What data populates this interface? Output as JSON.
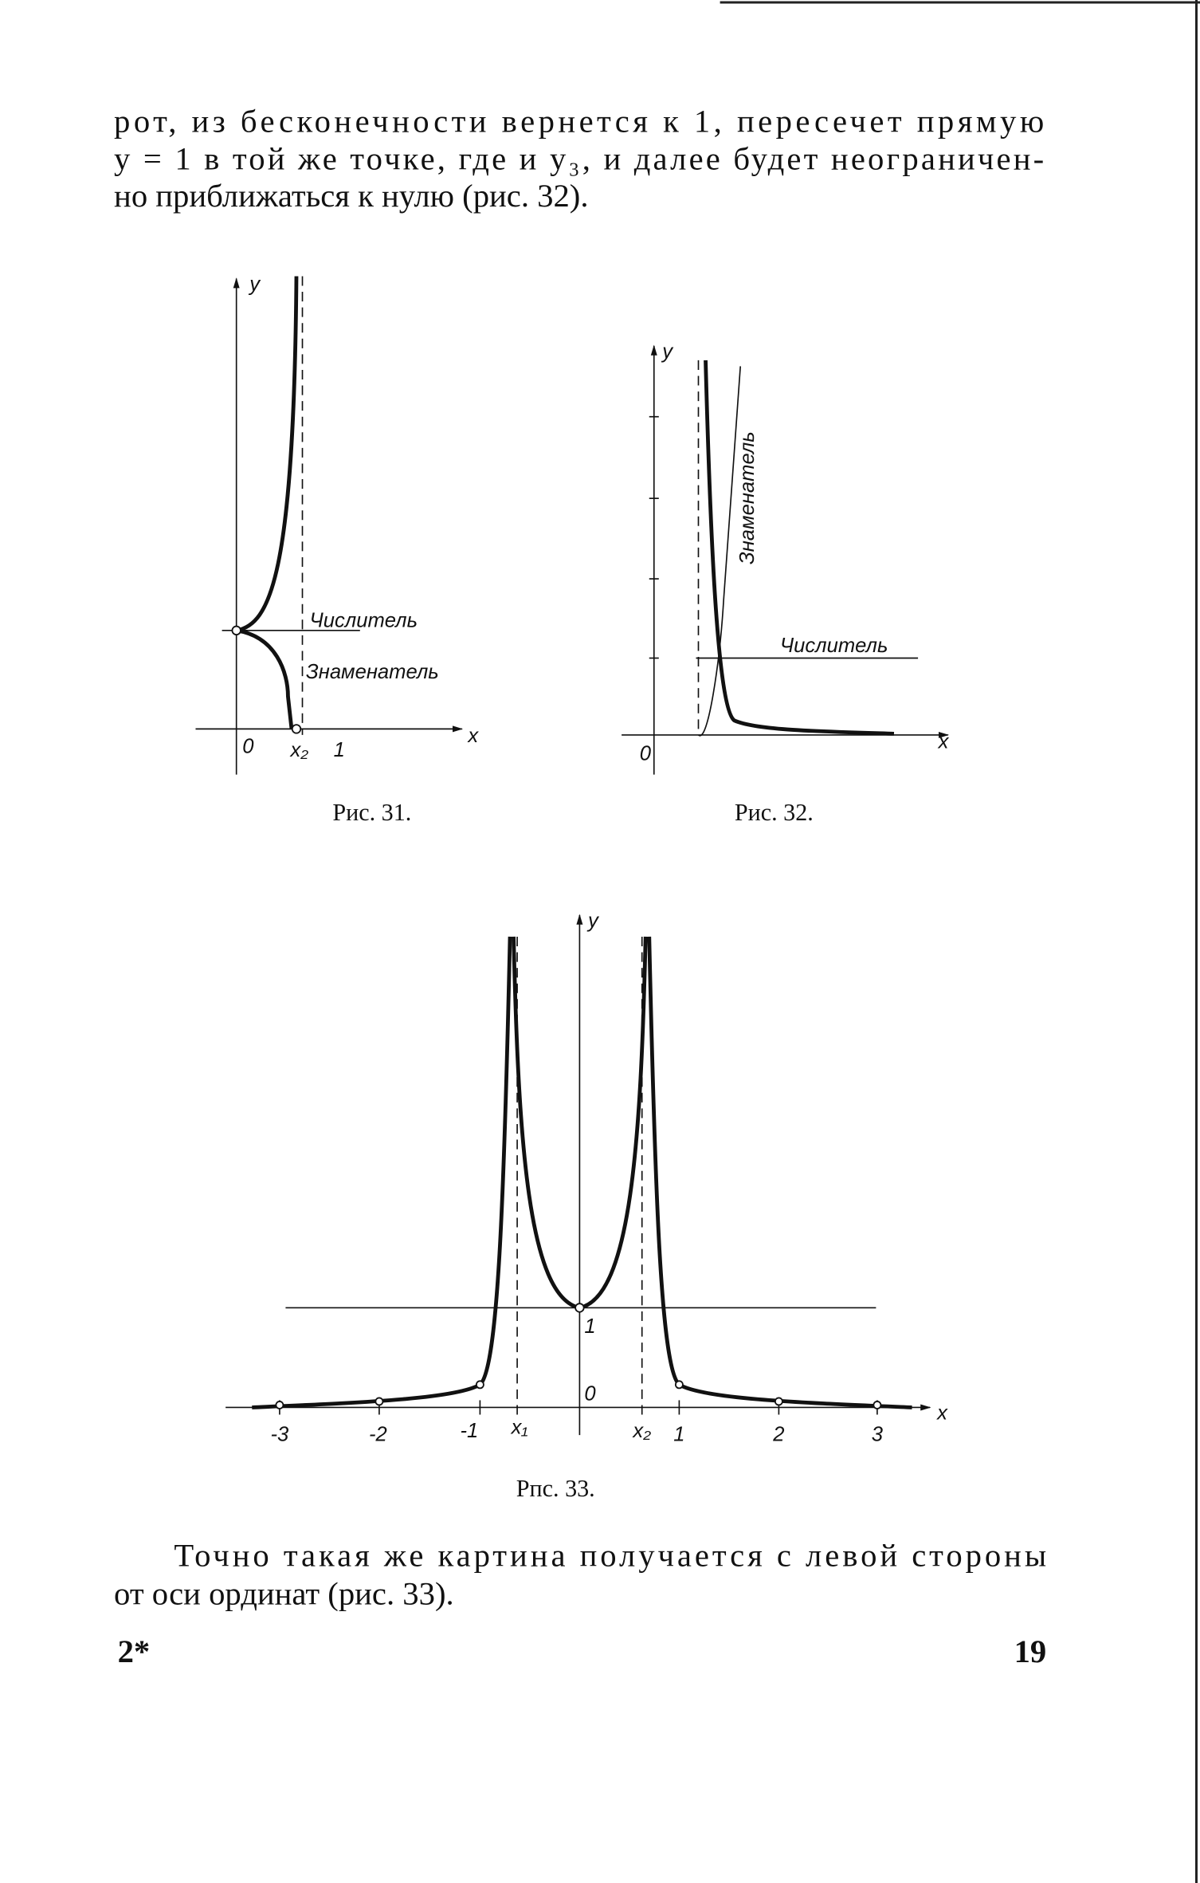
{
  "paragraph_1": [
    "рот, из бесконечности вернется к 1, пересечет прямую",
    "y = 1 в той же точке, где и y₃, и далее будет неограничен-",
    "но приближаться к нулю (рис. 32)."
  ],
  "figures": [
    {
      "caption": "Рис. 31.",
      "labels": [
        "y",
        "Числитель",
        "Знаменатель",
        "0",
        "x₂",
        "1",
        "x"
      ]
    },
    {
      "caption": "Рис. 32.",
      "labels": [
        "y",
        "Знаменатель",
        "Числитель",
        "0",
        "x"
      ]
    },
    {
      "caption": "Рпс. 33.",
      "labels": [
        "y",
        "1",
        "0",
        "-3",
        "-2",
        "-1",
        "x₁",
        "x₂",
        "1",
        "2",
        "3",
        "x"
      ]
    }
  ],
  "paragraph_2": [
    "Точно такая же картина получается с левой стороны",
    "от оси ординат (рис. 33)."
  ],
  "footer": {
    "signature": "2*",
    "page_number": "19"
  }
}
